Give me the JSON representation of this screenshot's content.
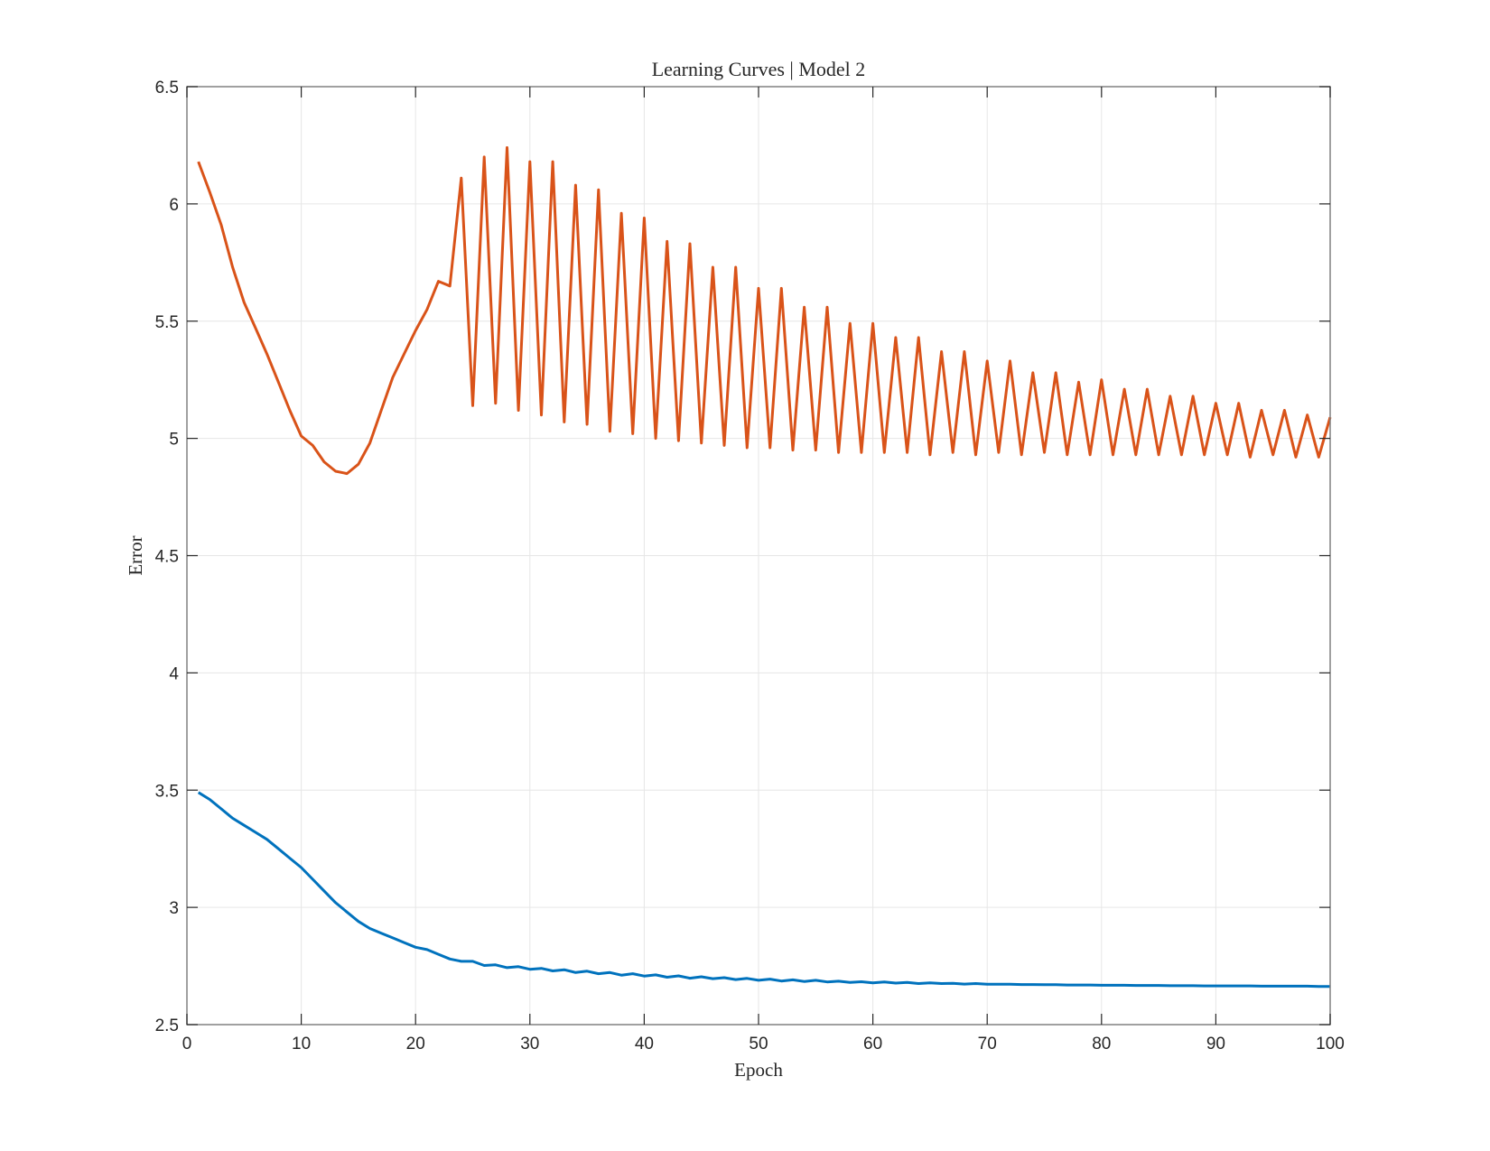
{
  "chart_data": {
    "type": "line",
    "title": "Learning Curves | Model 2",
    "xlabel": "Epoch",
    "ylabel": "Error",
    "xlim": [
      0,
      100
    ],
    "ylim": [
      2.5,
      6.5
    ],
    "xticks": [
      0,
      10,
      20,
      30,
      40,
      50,
      60,
      70,
      80,
      90,
      100
    ],
    "yticks": [
      2.5,
      3,
      3.5,
      4,
      4.5,
      5,
      5.5,
      6,
      6.5
    ],
    "xtick_labels": [
      "0",
      "10",
      "20",
      "30",
      "40",
      "50",
      "60",
      "70",
      "80",
      "90",
      "100"
    ],
    "ytick_labels": [
      "2.5",
      "3",
      "3.5",
      "4",
      "4.5",
      "5",
      "5.5",
      "6",
      "6.5"
    ],
    "grid": true,
    "legend": "none",
    "colors": {
      "series1": "#0072BD",
      "series2": "#D95319",
      "grid": "#e6e6e6",
      "axes": "#808080"
    },
    "series": [
      {
        "color": "#0072BD",
        "x": [
          1,
          2,
          3,
          4,
          5,
          6,
          7,
          8,
          9,
          10,
          11,
          12,
          13,
          14,
          15,
          16,
          17,
          18,
          19,
          20,
          21,
          22,
          23,
          24,
          25,
          26,
          27,
          28,
          29,
          30,
          31,
          32,
          33,
          34,
          35,
          36,
          37,
          38,
          39,
          40,
          41,
          42,
          43,
          44,
          45,
          46,
          47,
          48,
          49,
          50,
          51,
          52,
          53,
          54,
          55,
          56,
          57,
          58,
          59,
          60,
          61,
          62,
          63,
          64,
          65,
          66,
          67,
          68,
          69,
          70,
          71,
          72,
          73,
          74,
          75,
          76,
          77,
          78,
          79,
          80,
          81,
          82,
          83,
          84,
          85,
          86,
          87,
          88,
          89,
          90,
          91,
          92,
          93,
          94,
          95,
          96,
          97,
          98,
          99,
          100
        ],
        "values": [
          3.49,
          3.46,
          3.42,
          3.38,
          3.35,
          3.32,
          3.29,
          3.25,
          3.21,
          3.17,
          3.12,
          3.07,
          3.02,
          2.98,
          2.94,
          2.91,
          2.89,
          2.87,
          2.85,
          2.83,
          2.82,
          2.8,
          2.78,
          2.77,
          2.77,
          2.752,
          2.755,
          2.743,
          2.747,
          2.736,
          2.74,
          2.729,
          2.734,
          2.722,
          2.728,
          2.717,
          2.722,
          2.711,
          2.717,
          2.707,
          2.712,
          2.702,
          2.708,
          2.698,
          2.704,
          2.696,
          2.7,
          2.692,
          2.697,
          2.689,
          2.694,
          2.686,
          2.691,
          2.684,
          2.689,
          2.682,
          2.685,
          2.68,
          2.683,
          2.678,
          2.682,
          2.677,
          2.68,
          2.675,
          2.678,
          2.675,
          2.676,
          2.673,
          2.675,
          2.672,
          2.672,
          2.672,
          2.671,
          2.671,
          2.67,
          2.67,
          2.669,
          2.669,
          2.669,
          2.668,
          2.668,
          2.668,
          2.667,
          2.667,
          2.667,
          2.666,
          2.666,
          2.666,
          2.665,
          2.665,
          2.665,
          2.665,
          2.665,
          2.664,
          2.664,
          2.664,
          2.664,
          2.664,
          2.663,
          2.663
        ]
      },
      {
        "color": "#D95319",
        "x": [
          1,
          2,
          3,
          4,
          5,
          6,
          7,
          8,
          9,
          10,
          11,
          12,
          13,
          14,
          15,
          16,
          17,
          18,
          19,
          20,
          21,
          22,
          23,
          24,
          25,
          26,
          27,
          28,
          29,
          30,
          31,
          32,
          33,
          34,
          35,
          36,
          37,
          38,
          39,
          40,
          41,
          42,
          43,
          44,
          45,
          46,
          47,
          48,
          49,
          50,
          51,
          52,
          53,
          54,
          55,
          56,
          57,
          58,
          59,
          60,
          61,
          62,
          63,
          64,
          65,
          66,
          67,
          68,
          69,
          70,
          71,
          72,
          73,
          74,
          75,
          76,
          77,
          78,
          79,
          80,
          81,
          82,
          83,
          84,
          85,
          86,
          87,
          88,
          89,
          90,
          91,
          92,
          93,
          94,
          95,
          96,
          97,
          98,
          99,
          100
        ],
        "values": [
          6.18,
          6.05,
          5.91,
          5.73,
          5.58,
          5.47,
          5.36,
          5.24,
          5.12,
          5.01,
          4.97,
          4.9,
          4.86,
          4.85,
          4.89,
          4.98,
          5.12,
          5.26,
          5.36,
          5.46,
          5.55,
          5.67,
          5.65,
          6.11,
          5.14,
          6.2,
          5.15,
          6.24,
          5.12,
          6.18,
          5.1,
          6.18,
          5.07,
          6.08,
          5.06,
          6.06,
          5.03,
          5.96,
          5.02,
          5.94,
          5.0,
          5.84,
          4.99,
          5.83,
          4.98,
          5.73,
          4.97,
          5.73,
          4.96,
          5.64,
          4.96,
          5.64,
          4.95,
          5.56,
          4.95,
          5.56,
          4.94,
          5.49,
          4.94,
          5.49,
          4.94,
          5.43,
          4.94,
          5.43,
          4.93,
          5.37,
          4.94,
          5.37,
          4.93,
          5.33,
          4.94,
          5.33,
          4.93,
          5.28,
          4.94,
          5.28,
          4.93,
          5.24,
          4.93,
          5.25,
          4.93,
          5.21,
          4.93,
          5.21,
          4.93,
          5.18,
          4.93,
          5.18,
          4.93,
          5.15,
          4.93,
          5.15,
          4.92,
          5.12,
          4.93,
          5.12,
          4.92,
          5.1,
          4.92,
          5.09
        ]
      }
    ]
  }
}
